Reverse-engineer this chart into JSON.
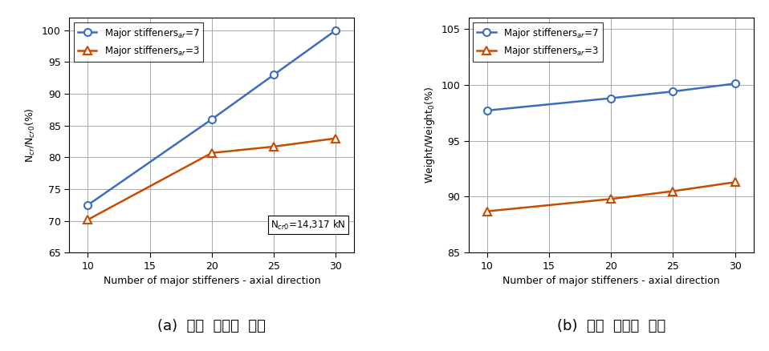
{
  "left": {
    "x": [
      10,
      20,
      25,
      30
    ],
    "blue_y": [
      72.5,
      86.0,
      93.0,
      100.0
    ],
    "orange_y": [
      70.2,
      80.7,
      81.7,
      83.0
    ],
    "ylim": [
      65,
      102
    ],
    "yticks": [
      65,
      70,
      75,
      80,
      85,
      90,
      95,
      100
    ],
    "ylabel": "N$_{cr}$/N$_{cr0}$(%)",
    "xlabel": "Number of major stiffeners - axial direction",
    "annotation": "N$_{cr0}$=14,317 kN",
    "caption": "(a)  좌굴  하중의  변화"
  },
  "right": {
    "x": [
      10,
      20,
      25,
      30
    ],
    "blue_y": [
      97.7,
      98.8,
      99.4,
      100.1
    ],
    "orange_y": [
      88.7,
      89.8,
      90.5,
      91.3
    ],
    "ylim": [
      85,
      106
    ],
    "yticks": [
      85,
      90,
      95,
      100,
      105
    ],
    "ylabel": "Weight/Weight$_0$(%)",
    "xlabel": "Number of major stiffeners - axial direction",
    "caption": "(b)  구조  중량의  변화"
  },
  "legend_blue": "Major stiffeners$_{ar}$=7",
  "legend_orange": "Major stiffeners$_{ar}$=3",
  "blue_color": "#3c6dbf",
  "orange_color": "#c84c00",
  "xticks": [
    10,
    15,
    20,
    25,
    30
  ],
  "grid_color": "#aaaaaa",
  "bg_color": "#ffffff",
  "caption_fontsize": 13
}
